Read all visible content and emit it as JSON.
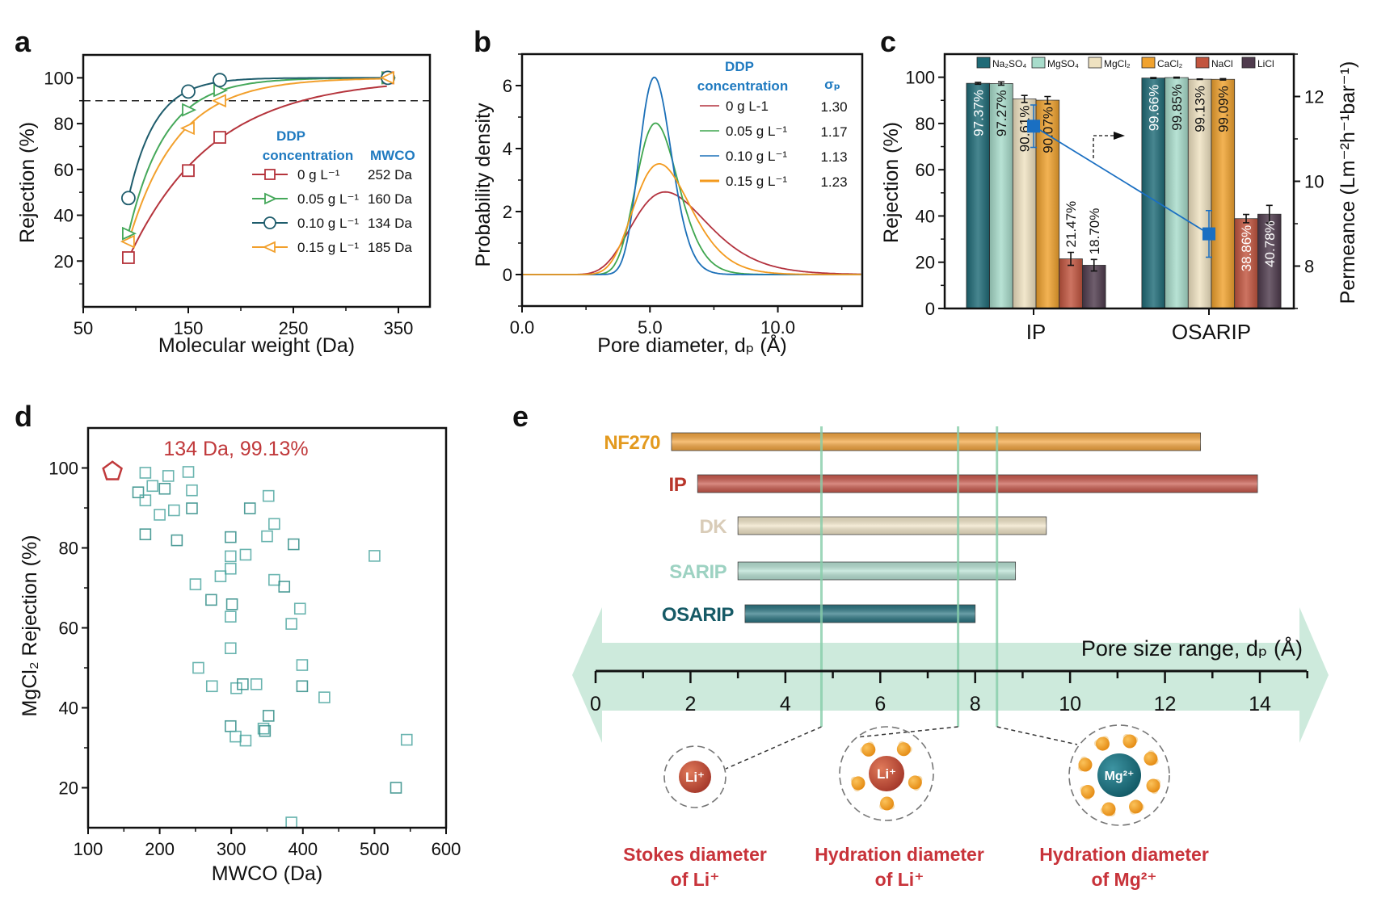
{
  "chart_data": [
    {
      "panel_label": "a",
      "type": "line",
      "xlabel": "Molecular weight (Da)",
      "ylabel": "Rejection (%)",
      "xlim": [
        50,
        380
      ],
      "ylim": [
        0,
        110
      ],
      "xticks": [
        "50",
        "150",
        "250",
        "350"
      ],
      "yticks": [
        "20",
        "40",
        "60",
        "80",
        "100"
      ],
      "reference_line_y": 90,
      "x": [
        93,
        150,
        180,
        340
      ],
      "legend": {
        "title_line1": "DDP",
        "title_line2": "concentration",
        "title_col2": "MWCO"
      },
      "series": [
        {
          "name": "0 g L⁻¹",
          "mwco": "252 Da",
          "marker": "square",
          "color": "#b5343c",
          "values": [
            21.5,
            59.5,
            74,
            100
          ]
        },
        {
          "name": "0.05 g L⁻¹",
          "mwco": "160 Da",
          "marker": "triangle-right",
          "color": "#45a85a",
          "values": [
            32,
            86,
            94.5,
            100
          ]
        },
        {
          "name": "0.10 g L⁻¹",
          "mwco": "134 Da",
          "marker": "circle",
          "color": "#1e5c6c",
          "values": [
            47.5,
            94,
            99,
            100
          ]
        },
        {
          "name": "0.15 g L⁻¹",
          "mwco": "185 Da",
          "marker": "triangle-left",
          "color": "#f2a02c",
          "values": [
            28.5,
            78,
            90,
            100
          ]
        }
      ]
    },
    {
      "panel_label": "b",
      "type": "line",
      "xlabel": "Pore diameter, dₚ (Å)",
      "ylabel": "Probability density",
      "xlim": [
        0,
        13.3
      ],
      "ylim": [
        -1,
        7
      ],
      "xticks": [
        "0.0",
        "5.0",
        "10.0"
      ],
      "yticks": [
        "0",
        "2",
        "4",
        "6"
      ],
      "legend": {
        "title_line1": "DDP",
        "title_line2": "concentration",
        "title_col2": "σₚ"
      },
      "series": [
        {
          "name": "0 g L-1",
          "sigma_p": "1.30",
          "mean_pore_size": 6.0,
          "color": "#b3323e"
        },
        {
          "name": "0.05 g L⁻¹",
          "sigma_p": "1.17",
          "mean_pore_size": 5.35,
          "color": "#3fa64f"
        },
        {
          "name": "0.10 g L⁻¹",
          "sigma_p": "1.13",
          "mean_pore_size": 5.25,
          "color": "#1c70b8"
        },
        {
          "name": "0.15 g L⁻¹",
          "sigma_p": "1.23",
          "mean_pore_size": 5.6,
          "color": "#f39a1e"
        }
      ]
    },
    {
      "panel_label": "c",
      "type": "bar",
      "ylabel": "Rejection (%)",
      "y2label": "Permeance (Lm⁻²h⁻¹bar⁻¹)",
      "ylim": [
        0,
        110
      ],
      "y2lim": [
        7,
        13
      ],
      "yticks": [
        "0",
        "20",
        "40",
        "60",
        "80",
        "100"
      ],
      "y2ticks": [
        "8",
        "10",
        "12"
      ],
      "categories": [
        "IP",
        "OSARIP"
      ],
      "series": [
        {
          "name": "Na₂SO₄",
          "color": "#1f6b77",
          "values": [
            97.37,
            99.66
          ],
          "errors": [
            0.4,
            0.2
          ],
          "labels": [
            "97.37%",
            "99.66%"
          ]
        },
        {
          "name": "MgSO₄",
          "color": "#a8dccb",
          "values": [
            97.27,
            99.85
          ],
          "errors": [
            0.7,
            0.2
          ],
          "labels": [
            "97.27%",
            "99.85%"
          ]
        },
        {
          "name": "MgCl₂",
          "color": "#efe2c1",
          "values": [
            90.61,
            99.13
          ],
          "errors": [
            1.5,
            0.1
          ],
          "labels": [
            "90.61%",
            "99.13%"
          ]
        },
        {
          "name": "CaCl₂",
          "color": "#f0a22e",
          "values": [
            90.07,
            99.09
          ],
          "errors": [
            1.6,
            0.3
          ],
          "labels": [
            "90.07%",
            "99.09%"
          ]
        },
        {
          "name": "NaCl",
          "color": "#c2553f",
          "values": [
            21.47,
            38.86
          ],
          "errors": [
            2.8,
            1.8
          ],
          "labels": [
            "21.47%",
            "38.86%"
          ]
        },
        {
          "name": "LiCl",
          "color": "#4f3b4d",
          "values": [
            18.7,
            40.78
          ],
          "errors": [
            2.5,
            3.8
          ],
          "labels": [
            "18.70%",
            "40.78%"
          ]
        }
      ],
      "permeance": {
        "color": "#1a6fc2",
        "values": [
          11.3,
          8.76
        ],
        "errors": [
          0.5,
          0.55
        ]
      }
    },
    {
      "panel_label": "d",
      "type": "scatter",
      "xlabel": "MWCO (Da)",
      "ylabel": "MgCl₂ Rejection (%)",
      "xlim": [
        100,
        600
      ],
      "ylim": [
        10,
        110
      ],
      "xticks": [
        "100",
        "200",
        "300",
        "400",
        "500",
        "600"
      ],
      "yticks": [
        "20",
        "40",
        "60",
        "80",
        "100"
      ],
      "point_color": "#4fa7a1",
      "highlight": {
        "x": 134,
        "y": 99.13,
        "label": "134 Da, 99.13%",
        "color": "#c0393b"
      },
      "points": [
        [
          170,
          93.9
        ],
        [
          180,
          98.8
        ],
        [
          180,
          91.9
        ],
        [
          180,
          83.4
        ],
        [
          190,
          95.5
        ],
        [
          200,
          88.3
        ],
        [
          207,
          94.8
        ],
        [
          212,
          98
        ],
        [
          220,
          89.4
        ],
        [
          224,
          81.9
        ],
        [
          240,
          99
        ],
        [
          245,
          94.4
        ],
        [
          245,
          89.9
        ],
        [
          250,
          70.9
        ],
        [
          254,
          50
        ],
        [
          272,
          67
        ],
        [
          273,
          45.4
        ],
        [
          285,
          72.9
        ],
        [
          299,
          82.7
        ],
        [
          299,
          77.9
        ],
        [
          299,
          74.8
        ],
        [
          301,
          65.9
        ],
        [
          299,
          62.8
        ],
        [
          299,
          54.9
        ],
        [
          299,
          35.4
        ],
        [
          307,
          44.9
        ],
        [
          306,
          32.8
        ],
        [
          316,
          45.9
        ],
        [
          320,
          78.3
        ],
        [
          320,
          31.8
        ],
        [
          326,
          89.9
        ],
        [
          335,
          45.9
        ],
        [
          345,
          34.8
        ],
        [
          347,
          34.2
        ],
        [
          350,
          82.9
        ],
        [
          352,
          93
        ],
        [
          352,
          38
        ],
        [
          360,
          86
        ],
        [
          360,
          72
        ],
        [
          374,
          70.3
        ],
        [
          384,
          61
        ],
        [
          384,
          11.3
        ],
        [
          387,
          80.9
        ],
        [
          396,
          64.8
        ],
        [
          399,
          50.7
        ],
        [
          399,
          45.4
        ],
        [
          430,
          42.6
        ],
        [
          500,
          78
        ],
        [
          530,
          20
        ],
        [
          545,
          32
        ]
      ]
    },
    {
      "panel_label": "e",
      "type": "bar",
      "xlabel": "Pore size range, dₚ (Å)",
      "xlim": [
        0,
        14
      ],
      "xticks": [
        "0",
        "2",
        "4",
        "6",
        "8",
        "10",
        "12",
        "14"
      ],
      "ranges": [
        {
          "name": "NF270",
          "min": 1.6,
          "max": 12.75,
          "color": "#f4a640",
          "label_color": "#e39a1f"
        },
        {
          "name": "IP",
          "min": 2.15,
          "max": 13.95,
          "color": "#c9594c",
          "label_color": "#b8352a"
        },
        {
          "name": "DK",
          "min": 3.0,
          "max": 9.5,
          "color": "#f1e5c8",
          "label_color": "#d9ccb8"
        },
        {
          "name": "SARIP",
          "min": 3.0,
          "max": 8.85,
          "color": "#b8e2d4",
          "label_color": "#9dd2c2"
        },
        {
          "name": "OSARIP",
          "min": 3.15,
          "max": 8.0,
          "color": "#2a7582",
          "label_color": "#165a66"
        }
      ],
      "reference_lines": [
        {
          "x": 4.76,
          "caption_line1": "Stokes diameter",
          "caption_line2": "of Li⁺",
          "ion": "Li⁺",
          "hydrated": false
        },
        {
          "x": 7.64,
          "caption_line1": "Hydration diameter",
          "caption_line2": "of Li⁺",
          "ion": "Li⁺",
          "hydrated": true
        },
        {
          "x": 8.46,
          "caption_line1": "Hydration diameter",
          "caption_line2": "of Mg²⁺",
          "ion": "Mg²⁺",
          "hydrated": true
        }
      ],
      "caption_color": "#c8333a",
      "band_color": "#cdeadc",
      "line_color": "#86cda9"
    }
  ]
}
